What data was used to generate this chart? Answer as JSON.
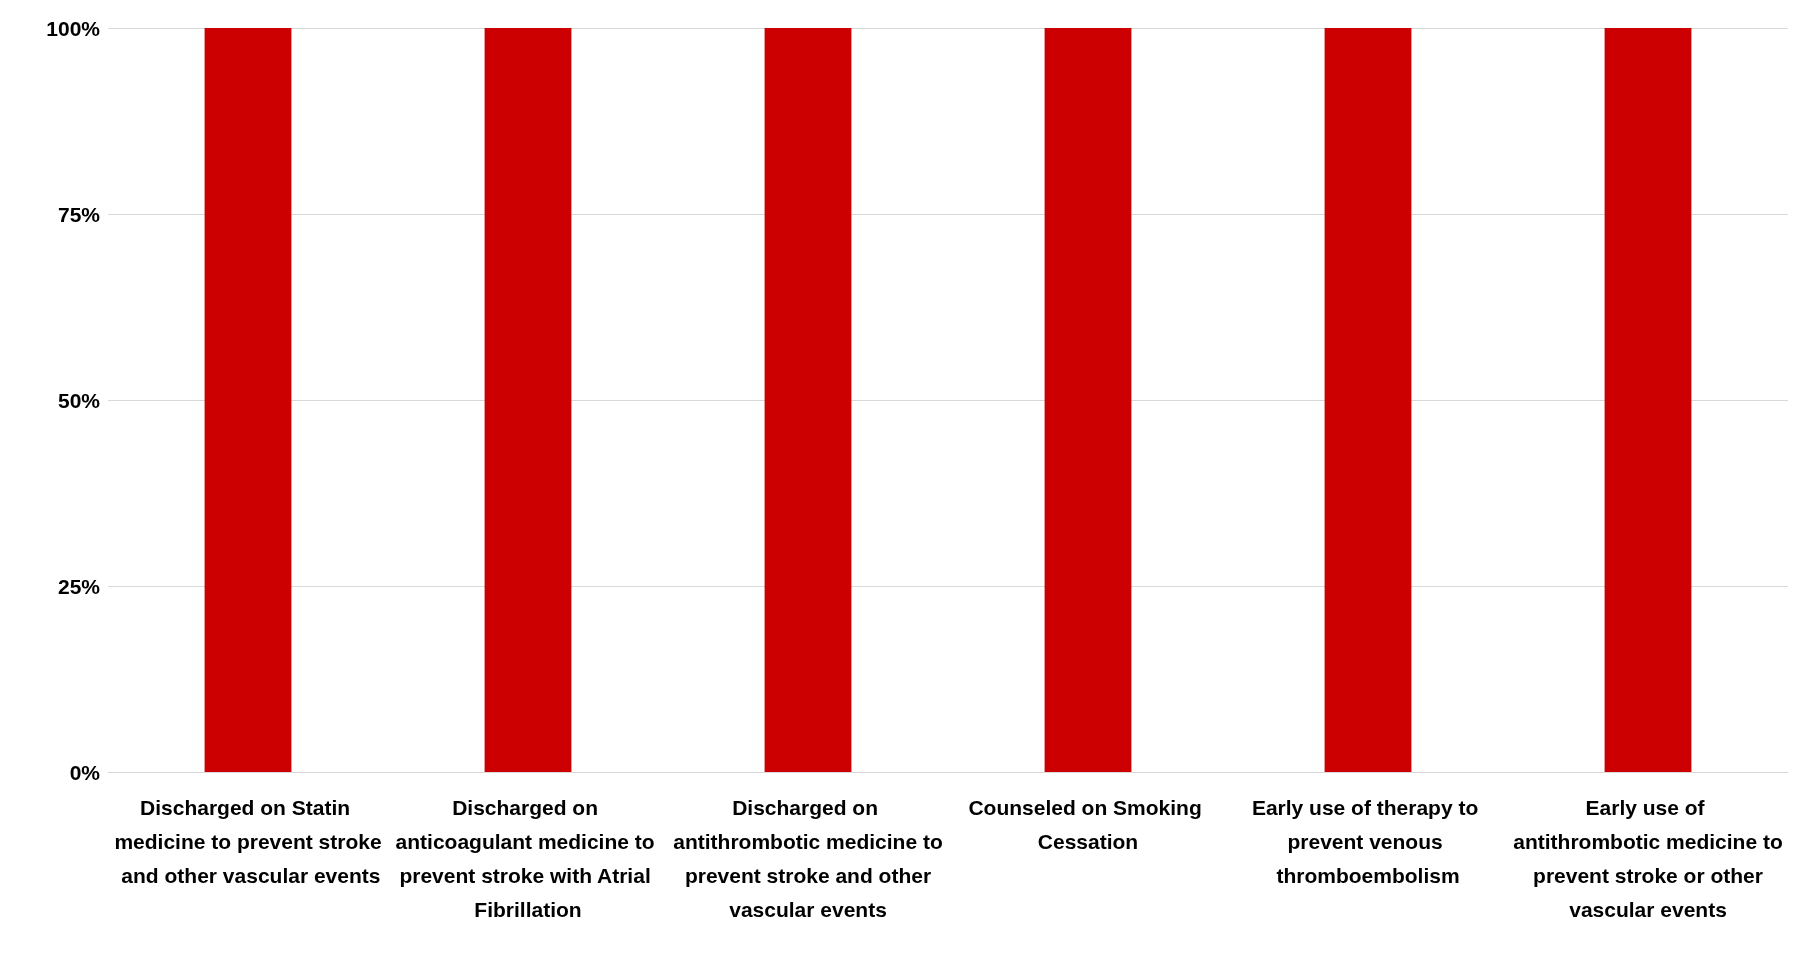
{
  "chart_data": {
    "type": "bar",
    "categories": [
      "Discharged on Statin medicine to prevent stroke and other vascular events",
      "Discharged on anticoagulant medicine to prevent stroke with Atrial Fibrillation",
      "Discharged on antithrombotic medicine to prevent stroke and other vascular events",
      "Counseled on Smoking Cessation",
      "Early use of therapy to prevent venous thromboembolism",
      "Early use of antithrombotic medicine to prevent stroke or other vascular events"
    ],
    "values": [
      100,
      100,
      100,
      100,
      100,
      100
    ],
    "color": "#cc0000",
    "ylim": [
      0,
      100
    ],
    "yticks": [
      {
        "value": 0,
        "label": "0%"
      },
      {
        "value": 25,
        "label": "25%"
      },
      {
        "value": 50,
        "label": "50%"
      },
      {
        "value": 75,
        "label": "75%"
      },
      {
        "value": 100,
        "label": "100%"
      }
    ],
    "grid": "y"
  }
}
